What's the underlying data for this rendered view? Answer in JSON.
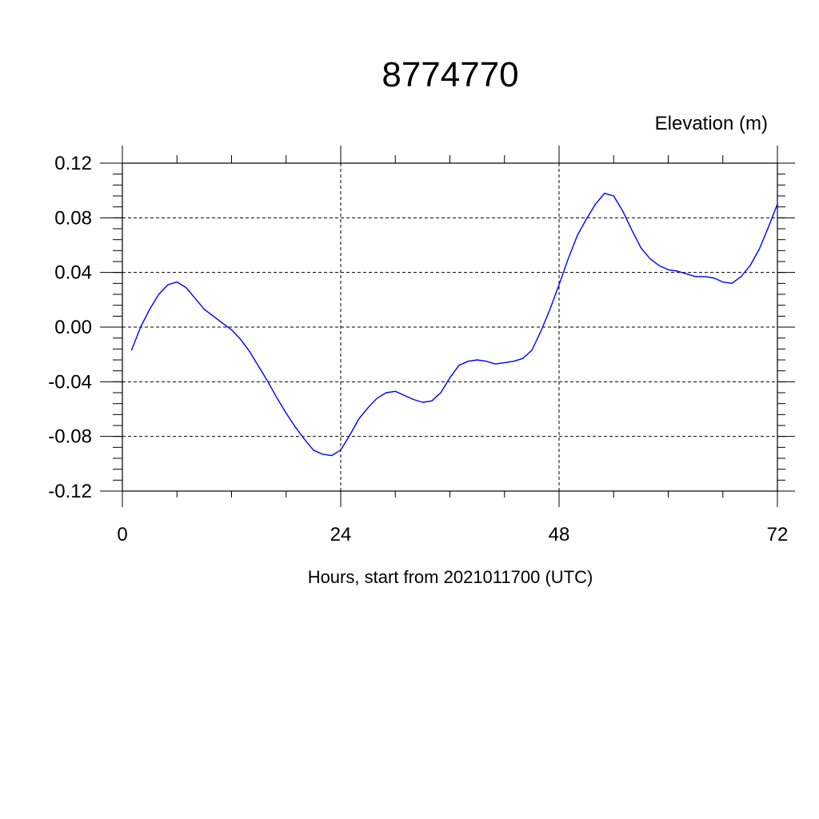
{
  "chart_data": {
    "type": "line",
    "title": "8774770",
    "ylabel": "Elevation (m)",
    "xlabel": "Hours, start from 2021011700 (UTC)",
    "xlim": [
      0,
      72
    ],
    "ylim": [
      -0.12,
      0.12
    ],
    "x_ticks": [
      0,
      24,
      48,
      72
    ],
    "x_tick_labels": [
      "0",
      "24",
      "48",
      "72"
    ],
    "y_ticks": [
      -0.12,
      -0.08,
      -0.04,
      0.0,
      0.04,
      0.08,
      0.12
    ],
    "y_tick_labels": [
      "-0.12",
      "-0.08",
      "-0.04",
      "0.00",
      "0.04",
      "0.08",
      "0.12"
    ],
    "grid": true,
    "series": [
      {
        "color": "#0000ff",
        "x": [
          1,
          2,
          3,
          4,
          5,
          6,
          7,
          8,
          9,
          10,
          11,
          12,
          13,
          14,
          15,
          16,
          17,
          18,
          19,
          20,
          21,
          22,
          23,
          24,
          25,
          26,
          27,
          28,
          29,
          30,
          31,
          32,
          33,
          34,
          35,
          36,
          37,
          38,
          39,
          40,
          41,
          42,
          43,
          44,
          45,
          46,
          47,
          48,
          49,
          50,
          51,
          52,
          53,
          54,
          55,
          56,
          57,
          58,
          59,
          60,
          61,
          62,
          63,
          64,
          65,
          66,
          67,
          68,
          69,
          70,
          71,
          72
        ],
        "y": [
          -0.017,
          0.0,
          0.013,
          0.024,
          0.031,
          0.033,
          0.029,
          0.021,
          0.013,
          0.008,
          0.003,
          -0.002,
          -0.009,
          -0.018,
          -0.029,
          -0.04,
          -0.052,
          -0.063,
          -0.073,
          -0.082,
          -0.09,
          -0.093,
          -0.094,
          -0.09,
          -0.079,
          -0.067,
          -0.059,
          -0.052,
          -0.048,
          -0.047,
          -0.05,
          -0.053,
          -0.055,
          -0.054,
          -0.048,
          -0.037,
          -0.028,
          -0.025,
          -0.024,
          -0.025,
          -0.027,
          -0.026,
          -0.025,
          -0.023,
          -0.017,
          -0.003,
          0.013,
          0.031,
          0.05,
          0.067,
          0.079,
          0.09,
          0.098,
          0.096,
          0.085,
          0.071,
          0.058,
          0.05,
          0.045,
          0.042,
          0.041,
          0.039,
          0.037,
          0.037,
          0.036,
          0.033,
          0.032,
          0.037,
          0.045,
          0.057,
          0.073,
          0.09
        ]
      }
    ]
  }
}
